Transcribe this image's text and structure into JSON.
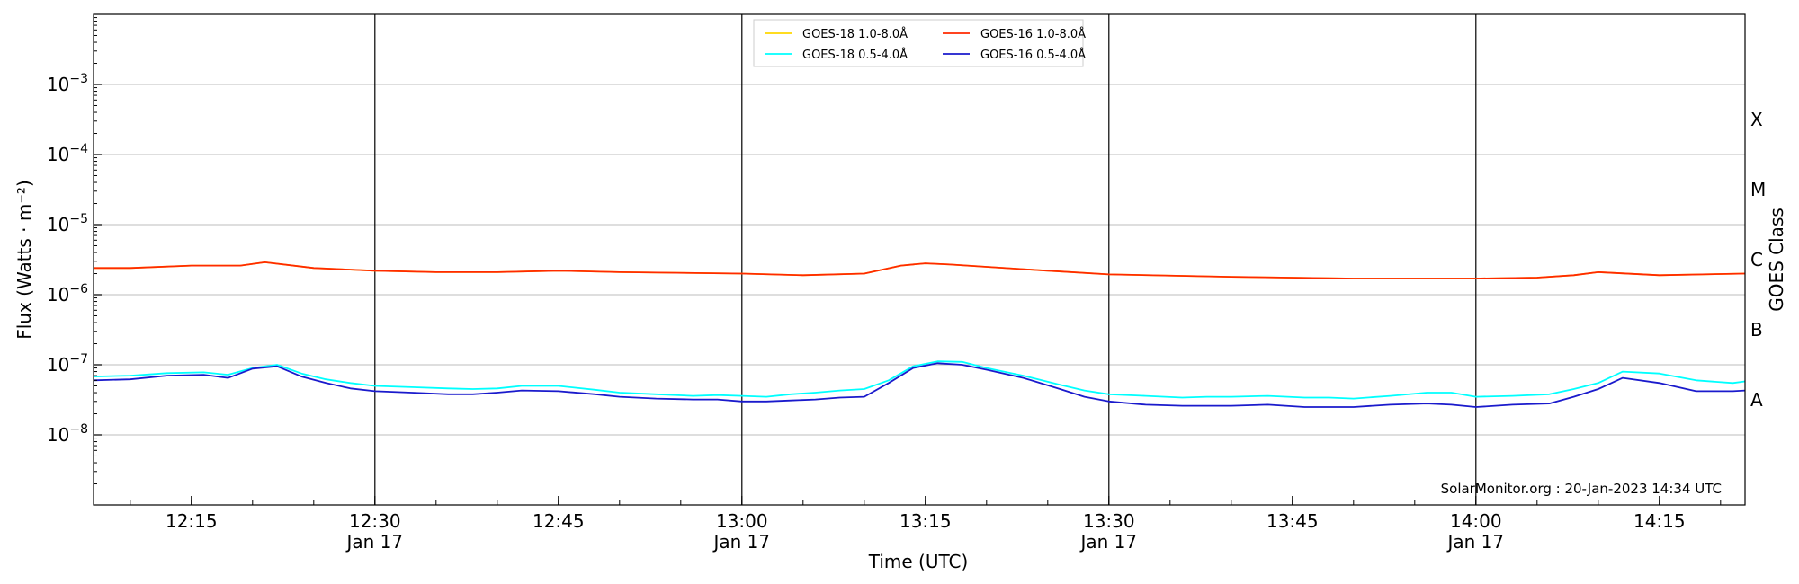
{
  "chart_data": {
    "type": "line",
    "xlabel": "Time (UTC)",
    "ylabel": "Flux (Watts · m⁻²)",
    "y2label": "GOES Class",
    "credit": "SolarMonitor.org : 20-Jan-2023 14:34 UTC",
    "x_range_minutes": [
      12.0,
      13.0,
      14.0
    ],
    "xlim": [
      "12:07",
      "14:22"
    ],
    "ylim_log10": [
      -9,
      -2
    ],
    "yscale": "log",
    "grid": "horizontal",
    "legend_placement": "top-center",
    "x_ticks": [
      {
        "t": "12:15",
        "label": "12:15",
        "date": ""
      },
      {
        "t": "12:30",
        "label": "12:30",
        "date": "Jan 17"
      },
      {
        "t": "12:45",
        "label": "12:45",
        "date": ""
      },
      {
        "t": "13:00",
        "label": "13:00",
        "date": "Jan 17"
      },
      {
        "t": "13:15",
        "label": "13:15",
        "date": ""
      },
      {
        "t": "13:30",
        "label": "13:30",
        "date": "Jan 17"
      },
      {
        "t": "13:45",
        "label": "13:45",
        "date": ""
      },
      {
        "t": "14:00",
        "label": "14:00",
        "date": "Jan 17"
      },
      {
        "t": "14:15",
        "label": "14:15",
        "date": ""
      }
    ],
    "vertical_lines": [
      "12:30",
      "13:00",
      "13:30",
      "14:00"
    ],
    "y_ticks": [
      {
        "exp": -8,
        "mantissa": "10",
        "power": "−8"
      },
      {
        "exp": -7,
        "mantissa": "10",
        "power": "−7"
      },
      {
        "exp": -6,
        "mantissa": "10",
        "power": "−6"
      },
      {
        "exp": -5,
        "mantissa": "10",
        "power": "−5"
      },
      {
        "exp": -4,
        "mantissa": "10",
        "power": "−4"
      },
      {
        "exp": -3,
        "mantissa": "10",
        "power": "−3"
      }
    ],
    "goes_classes": [
      {
        "label": "A",
        "exp": -7.5
      },
      {
        "label": "B",
        "exp": -6.5
      },
      {
        "label": "C",
        "exp": -5.5
      },
      {
        "label": "M",
        "exp": -4.5
      },
      {
        "label": "X",
        "exp": -3.5
      }
    ],
    "series": [
      {
        "name": "GOES-18 1.0-8.0Å",
        "color": "#ffd700",
        "x": [
          "12:07",
          "12:10",
          "12:15",
          "12:19",
          "12:21",
          "12:25",
          "12:30",
          "12:35",
          "12:40",
          "12:45",
          "12:50",
          "13:00",
          "13:05",
          "13:10",
          "13:13",
          "13:15",
          "13:17",
          "13:20",
          "13:25",
          "13:30",
          "13:40",
          "13:50",
          "14:00",
          "14:05",
          "14:08",
          "14:10",
          "14:15",
          "14:22"
        ],
        "values": [
          2.4e-06,
          2.4e-06,
          2.6e-06,
          2.6e-06,
          2.9e-06,
          2.4e-06,
          2.2e-06,
          2.1e-06,
          2.1e-06,
          2.2e-06,
          2.1e-06,
          2e-06,
          1.9e-06,
          2e-06,
          2.6e-06,
          2.8e-06,
          2.7e-06,
          2.5e-06,
          2.2e-06,
          1.95e-06,
          1.8e-06,
          1.7e-06,
          1.7e-06,
          1.75e-06,
          1.9e-06,
          2.1e-06,
          1.9e-06,
          2e-06
        ]
      },
      {
        "name": "GOES-18 0.5-4.0Å",
        "color": "#00ffff",
        "x": [
          "12:07",
          "12:10",
          "12:13",
          "12:16",
          "12:18",
          "12:20",
          "12:22",
          "12:24",
          "12:26",
          "12:28",
          "12:30",
          "12:33",
          "12:36",
          "12:38",
          "12:40",
          "12:42",
          "12:45",
          "12:48",
          "12:50",
          "12:53",
          "12:56",
          "12:58",
          "13:00",
          "13:02",
          "13:04",
          "13:06",
          "13:08",
          "13:10",
          "13:12",
          "13:14",
          "13:16",
          "13:18",
          "13:20",
          "13:23",
          "13:26",
          "13:28",
          "13:30",
          "13:33",
          "13:36",
          "13:38",
          "13:40",
          "13:43",
          "13:46",
          "13:48",
          "13:50",
          "13:53",
          "13:56",
          "13:58",
          "14:00",
          "14:03",
          "14:06",
          "14:08",
          "14:10",
          "14:12",
          "14:15",
          "14:18",
          "14:21",
          "14:22"
        ],
        "values": [
          6.8e-08,
          7e-08,
          7.6e-08,
          7.8e-08,
          7.2e-08,
          9e-08,
          1e-07,
          7.5e-08,
          6.2e-08,
          5.5e-08,
          5e-08,
          4.8e-08,
          4.6e-08,
          4.5e-08,
          4.6e-08,
          5e-08,
          5e-08,
          4.4e-08,
          4e-08,
          3.8e-08,
          3.6e-08,
          3.7e-08,
          3.6e-08,
          3.5e-08,
          3.8e-08,
          4e-08,
          4.3e-08,
          4.5e-08,
          6e-08,
          9.5e-08,
          1.12e-07,
          1.1e-07,
          9e-08,
          7e-08,
          5.2e-08,
          4.3e-08,
          3.8e-08,
          3.6e-08,
          3.4e-08,
          3.5e-08,
          3.5e-08,
          3.6e-08,
          3.4e-08,
          3.4e-08,
          3.3e-08,
          3.6e-08,
          4e-08,
          4e-08,
          3.5e-08,
          3.6e-08,
          3.8e-08,
          4.5e-08,
          5.5e-08,
          8e-08,
          7.5e-08,
          6e-08,
          5.5e-08,
          5.8e-08
        ]
      },
      {
        "name": "GOES-16 1.0-8.0Å",
        "color": "#ff2a00",
        "x": [
          "12:07",
          "12:10",
          "12:15",
          "12:19",
          "12:21",
          "12:25",
          "12:30",
          "12:35",
          "12:40",
          "12:45",
          "12:50",
          "13:00",
          "13:05",
          "13:10",
          "13:13",
          "13:15",
          "13:17",
          "13:20",
          "13:25",
          "13:30",
          "13:40",
          "13:50",
          "14:00",
          "14:05",
          "14:08",
          "14:10",
          "14:15",
          "14:22"
        ],
        "values": [
          2.4e-06,
          2.4e-06,
          2.6e-06,
          2.6e-06,
          2.9e-06,
          2.4e-06,
          2.2e-06,
          2.1e-06,
          2.1e-06,
          2.2e-06,
          2.1e-06,
          2e-06,
          1.9e-06,
          2e-06,
          2.6e-06,
          2.8e-06,
          2.7e-06,
          2.5e-06,
          2.2e-06,
          1.95e-06,
          1.8e-06,
          1.7e-06,
          1.7e-06,
          1.75e-06,
          1.9e-06,
          2.1e-06,
          1.9e-06,
          2e-06
        ]
      },
      {
        "name": "GOES-16 0.5-4.0Å",
        "color": "#1a1acc",
        "x": [
          "12:07",
          "12:10",
          "12:13",
          "12:16",
          "12:18",
          "12:20",
          "12:22",
          "12:24",
          "12:26",
          "12:28",
          "12:30",
          "12:33",
          "12:36",
          "12:38",
          "12:40",
          "12:42",
          "12:45",
          "12:48",
          "12:50",
          "12:53",
          "12:56",
          "12:58",
          "13:00",
          "13:02",
          "13:04",
          "13:06",
          "13:08",
          "13:10",
          "13:12",
          "13:14",
          "13:16",
          "13:18",
          "13:20",
          "13:23",
          "13:26",
          "13:28",
          "13:30",
          "13:33",
          "13:36",
          "13:38",
          "13:40",
          "13:43",
          "13:46",
          "13:48",
          "13:50",
          "13:53",
          "13:56",
          "13:58",
          "14:00",
          "14:03",
          "14:06",
          "14:08",
          "14:10",
          "14:12",
          "14:15",
          "14:18",
          "14:21",
          "14:22"
        ],
        "values": [
          6e-08,
          6.2e-08,
          7e-08,
          7.2e-08,
          6.5e-08,
          8.8e-08,
          9.5e-08,
          6.8e-08,
          5.5e-08,
          4.6e-08,
          4.2e-08,
          4e-08,
          3.8e-08,
          3.8e-08,
          4e-08,
          4.3e-08,
          4.2e-08,
          3.8e-08,
          3.5e-08,
          3.3e-08,
          3.2e-08,
          3.2e-08,
          3e-08,
          3e-08,
          3.1e-08,
          3.2e-08,
          3.4e-08,
          3.5e-08,
          5.5e-08,
          9e-08,
          1.05e-07,
          1e-07,
          8.5e-08,
          6.5e-08,
          4.5e-08,
          3.5e-08,
          3e-08,
          2.7e-08,
          2.6e-08,
          2.6e-08,
          2.6e-08,
          2.7e-08,
          2.5e-08,
          2.5e-08,
          2.5e-08,
          2.7e-08,
          2.8e-08,
          2.7e-08,
          2.5e-08,
          2.7e-08,
          2.8e-08,
          3.5e-08,
          4.5e-08,
          6.5e-08,
          5.5e-08,
          4.2e-08,
          4.2e-08,
          4.3e-08
        ]
      }
    ]
  }
}
